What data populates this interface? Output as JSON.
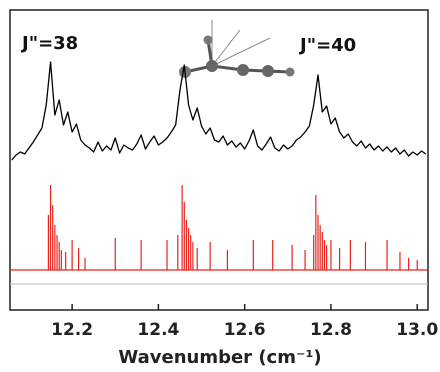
{
  "chart_data": {
    "type": "line",
    "x_label": "Wavenumber (cm⁻¹)",
    "annotations": [
      "J\"=38",
      "J\"=40"
    ],
    "xlim": [
      12.056,
      13.025
    ],
    "ylim": [
      0,
      30
    ],
    "xticks": [
      12.2,
      12.4,
      12.6,
      {
        "value": 12.8,
        "label": "12.8"
      },
      {
        "value": 13.0,
        "label": "13.0"
      }
    ],
    "series": [
      {
        "color": "#000000",
        "stem": false,
        "x": [
          12.06,
          12.07,
          12.08,
          12.09,
          12.1,
          12.11,
          12.12,
          12.13,
          12.14,
          12.15,
          12.16,
          12.17,
          12.18,
          12.19,
          12.2,
          12.21,
          12.22,
          12.23,
          12.24,
          12.25,
          12.26,
          12.27,
          12.28,
          12.29,
          12.3,
          12.31,
          12.32,
          12.33,
          12.34,
          12.35,
          12.36,
          12.37,
          12.38,
          12.39,
          12.4,
          12.41,
          12.42,
          12.43,
          12.44,
          12.45,
          12.46,
          12.47,
          12.48,
          12.49,
          12.5,
          12.51,
          12.52,
          12.53,
          12.54,
          12.55,
          12.56,
          12.57,
          12.58,
          12.59,
          12.6,
          12.61,
          12.62,
          12.63,
          12.64,
          12.65,
          12.66,
          12.67,
          12.68,
          12.69,
          12.7,
          12.71,
          12.72,
          12.73,
          12.74,
          12.75,
          12.76,
          12.77,
          12.78,
          12.79,
          12.8,
          12.81,
          12.82,
          12.83,
          12.84,
          12.85,
          12.86,
          12.87,
          12.88,
          12.89,
          12.9,
          12.91,
          12.92,
          12.93,
          12.94,
          12.95,
          12.96,
          12.97,
          12.98,
          12.99,
          13.0,
          13.01,
          13.02
        ],
        "values": [
          15.0,
          15.5,
          15.8,
          15.6,
          16.2,
          16.8,
          17.5,
          18.2,
          20.5,
          24.8,
          19.5,
          21.0,
          18.5,
          19.8,
          17.8,
          18.6,
          17.0,
          16.5,
          16.2,
          15.8,
          16.8,
          15.9,
          16.4,
          16.0,
          17.2,
          15.7,
          16.5,
          16.2,
          16.0,
          16.6,
          17.5,
          16.1,
          16.8,
          17.4,
          16.5,
          16.8,
          17.2,
          17.8,
          18.5,
          22.0,
          24.5,
          20.5,
          19.0,
          20.2,
          18.4,
          17.6,
          18.2,
          17.0,
          16.8,
          17.4,
          16.5,
          16.9,
          16.3,
          16.7,
          16.1,
          16.9,
          18.0,
          16.4,
          16.0,
          16.6,
          17.3,
          16.2,
          15.9,
          16.5,
          16.1,
          16.4,
          17.0,
          17.3,
          17.8,
          18.4,
          20.5,
          23.5,
          19.8,
          20.4,
          18.6,
          19.2,
          17.8,
          17.2,
          17.6,
          16.8,
          16.4,
          16.9,
          16.2,
          16.6,
          16.0,
          16.4,
          15.9,
          16.3,
          15.8,
          16.2,
          15.6,
          16.0,
          15.4,
          15.8,
          15.5,
          15.9,
          15.6
        ]
      },
      {
        "color": "#e8231c",
        "stem": true,
        "baseline": 4,
        "x": [
          12.145,
          12.15,
          12.155,
          12.16,
          12.165,
          12.17,
          12.175,
          12.185,
          12.2,
          12.215,
          12.23,
          12.3,
          12.36,
          12.42,
          12.445,
          12.455,
          12.46,
          12.465,
          12.47,
          12.475,
          12.48,
          12.49,
          12.52,
          12.56,
          12.62,
          12.665,
          12.71,
          12.74,
          12.76,
          12.765,
          12.77,
          12.775,
          12.78,
          12.785,
          12.79,
          12.8,
          12.82,
          12.845,
          12.88,
          12.93,
          12.96,
          12.98,
          13.0
        ],
        "values": [
          9.5,
          12.5,
          10.5,
          8.5,
          7.5,
          6.8,
          6.0,
          5.8,
          7.0,
          6.2,
          5.2,
          7.2,
          7.0,
          7.0,
          7.5,
          12.5,
          10.8,
          9.0,
          8.2,
          7.5,
          6.8,
          6.2,
          6.8,
          6.0,
          7.0,
          7.0,
          6.5,
          6.0,
          7.5,
          11.5,
          9.5,
          8.5,
          7.8,
          7.0,
          6.5,
          7.0,
          6.2,
          7.0,
          6.8,
          7.0,
          5.8,
          5.2,
          5.0
        ]
      }
    ]
  }
}
